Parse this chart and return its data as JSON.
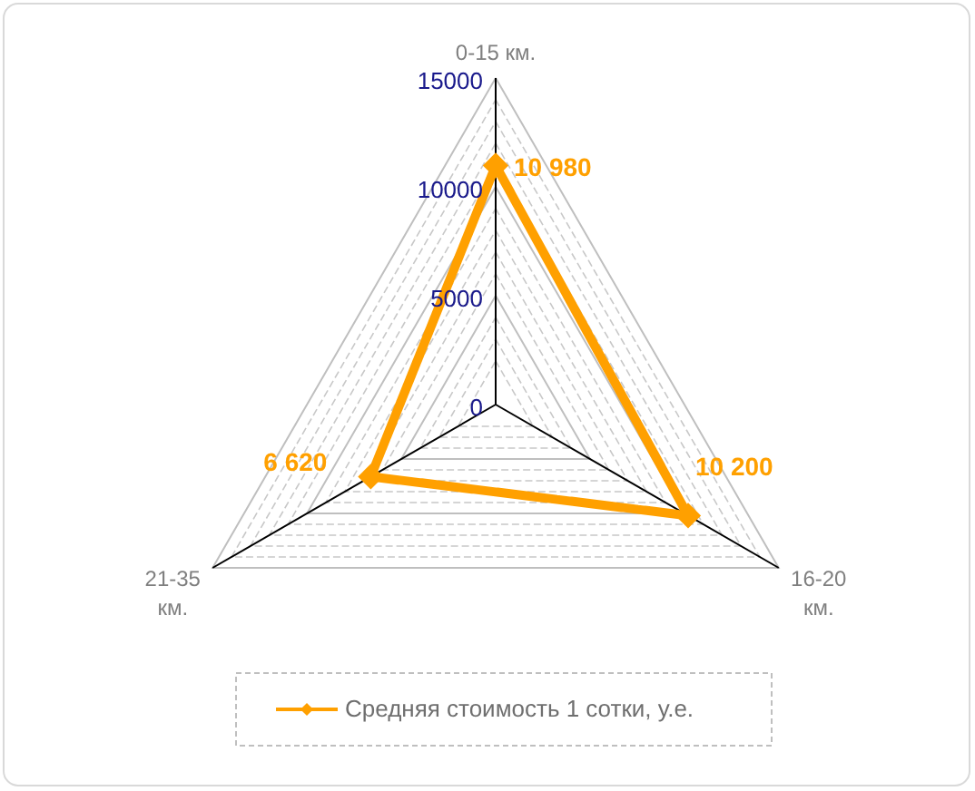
{
  "chart_data": {
    "type": "radar",
    "categories": [
      "0-15 км.",
      "16-20 км.",
      "21-35 км."
    ],
    "series": [
      {
        "name": "Средняя стоимость 1 сотки, у.е.",
        "color": "#ffa000",
        "values": [
          10980,
          10200,
          6620
        ],
        "value_labels": [
          "10 980",
          "10  200",
          "6 620"
        ]
      }
    ],
    "ylim": [
      0,
      15000
    ],
    "yticks": [
      0,
      5000,
      10000,
      15000
    ],
    "grid": true,
    "legend": "bottom",
    "marker": "diamond",
    "line_style": "solid"
  }
}
